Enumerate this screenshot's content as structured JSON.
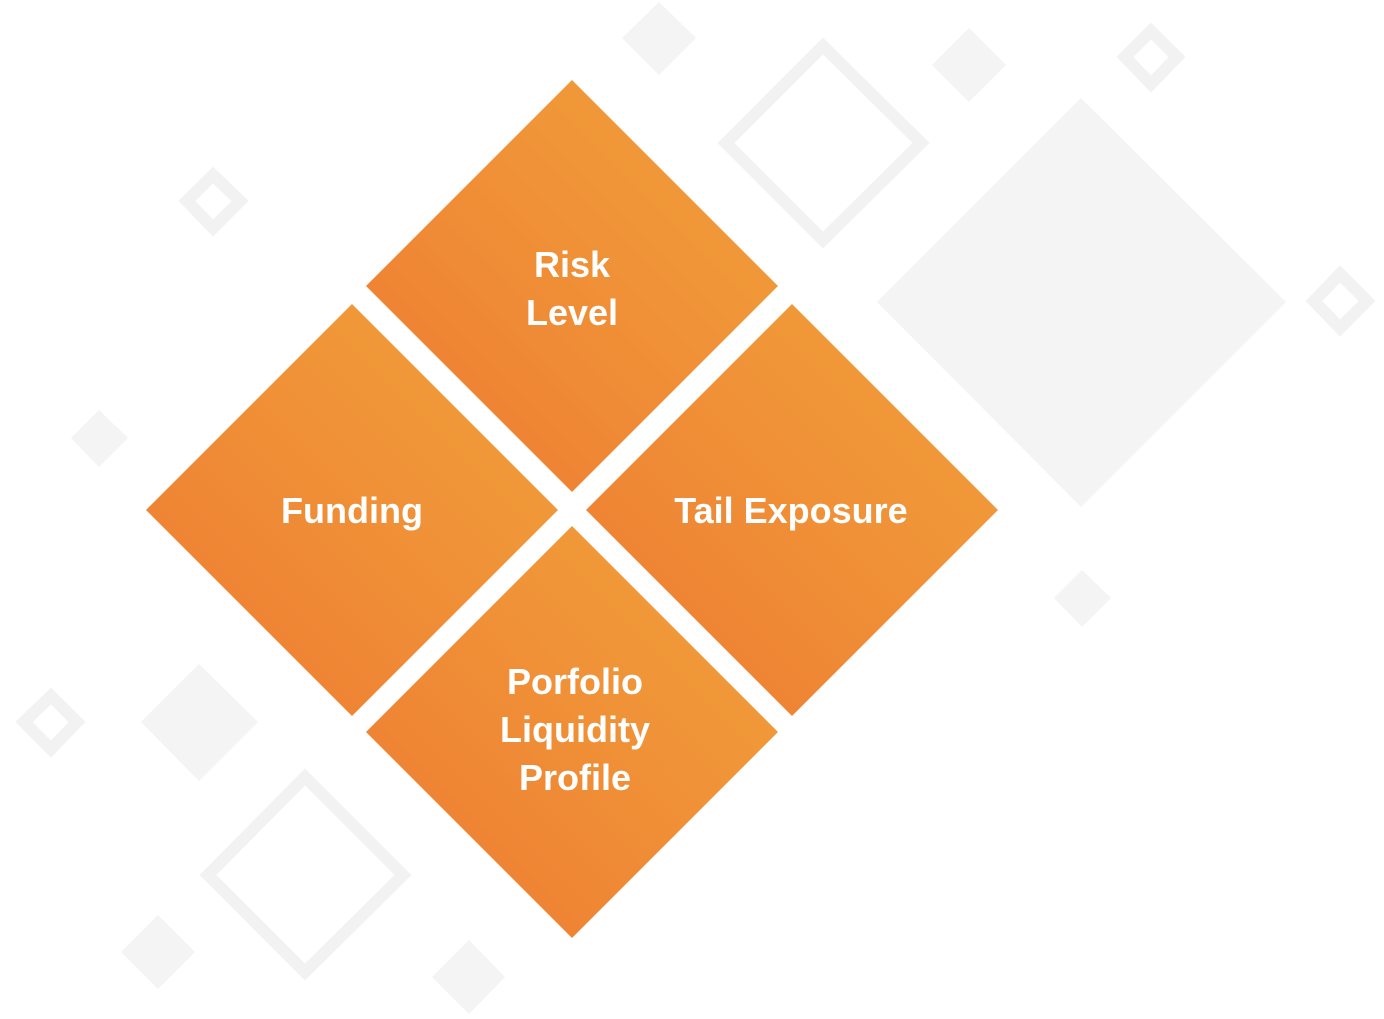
{
  "diagram": {
    "colors": {
      "gradient_light": "#F1A33B",
      "gradient_dark": "#EE7A32",
      "label": "#ffffff",
      "decor_fill": "#F4F4F4",
      "decor_stroke": "#F2F2F2"
    },
    "quadrants": {
      "top": {
        "lines": [
          "Risk",
          "Level"
        ]
      },
      "left": {
        "lines": [
          "Funding"
        ]
      },
      "right": {
        "lines": [
          "Tail Exposure"
        ]
      },
      "bottom": {
        "lines": [
          "Porfolio",
          "Liquidity",
          "Profile"
        ]
      }
    }
  }
}
